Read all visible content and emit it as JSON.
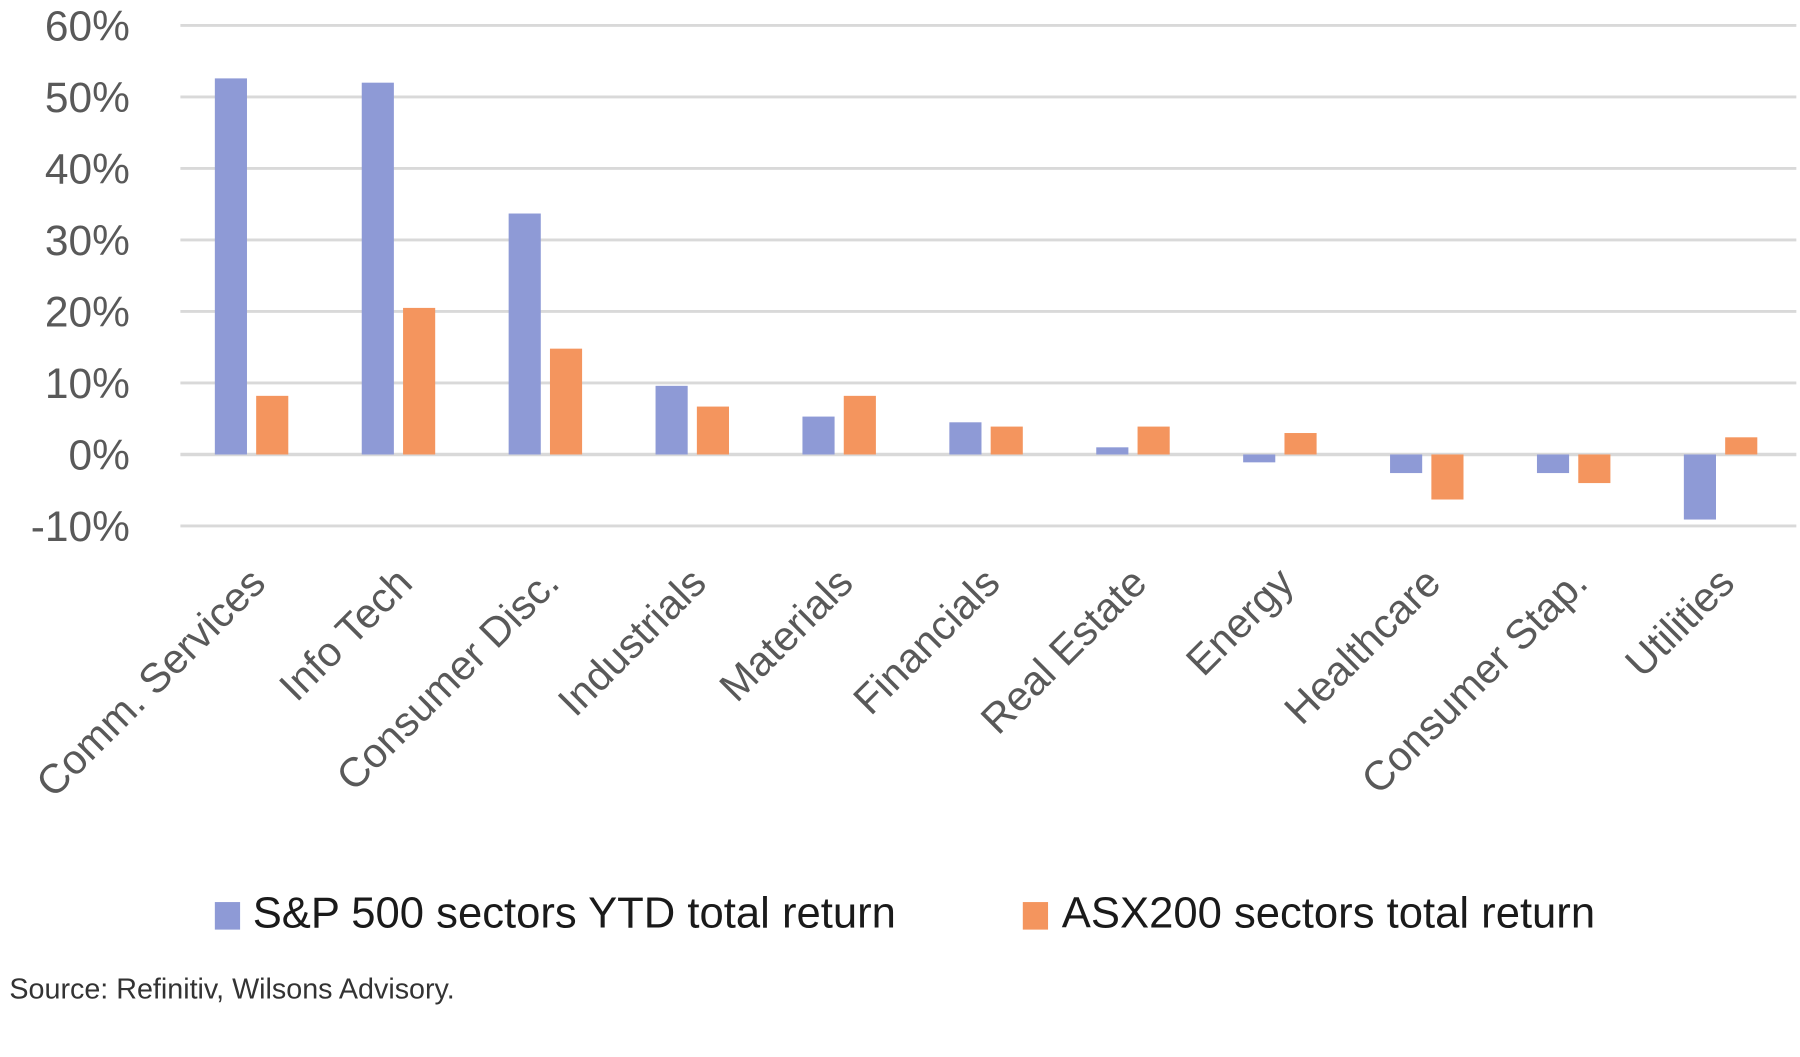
{
  "chart_data": {
    "type": "bar",
    "title": "",
    "xlabel": "",
    "ylabel": "",
    "ylim": [
      -10,
      60
    ],
    "yticks": [
      60,
      50,
      40,
      30,
      20,
      10,
      0,
      -10
    ],
    "ytick_labels": [
      "60%",
      "50%",
      "40%",
      "30%",
      "20%",
      "10%",
      "0%",
      "-10%"
    ],
    "grid": true,
    "legend_position": "bottom",
    "categories": [
      "Comm. Services",
      "Info Tech",
      "Consumer Disc.",
      "Industrials",
      "Materials",
      "Financials",
      "Real Estate",
      "Energy",
      "Healthcare",
      "Consumer Stap.",
      "Utilities"
    ],
    "series": [
      {
        "name": "S&P 500 sectors YTD total return",
        "color": "#8E9AD6",
        "values": [
          52.6,
          52.0,
          33.7,
          9.6,
          5.3,
          4.5,
          1.0,
          -1.1,
          -2.6,
          -2.6,
          -9.1
        ]
      },
      {
        "name": "ASX200 sectors total return",
        "color": "#F4955E",
        "values": [
          8.2,
          20.5,
          14.8,
          6.7,
          8.2,
          3.9,
          3.9,
          3.0,
          -6.3,
          -4.0,
          2.4
        ]
      }
    ],
    "source": "Source: Refinitiv, Wilsons Advisory."
  }
}
